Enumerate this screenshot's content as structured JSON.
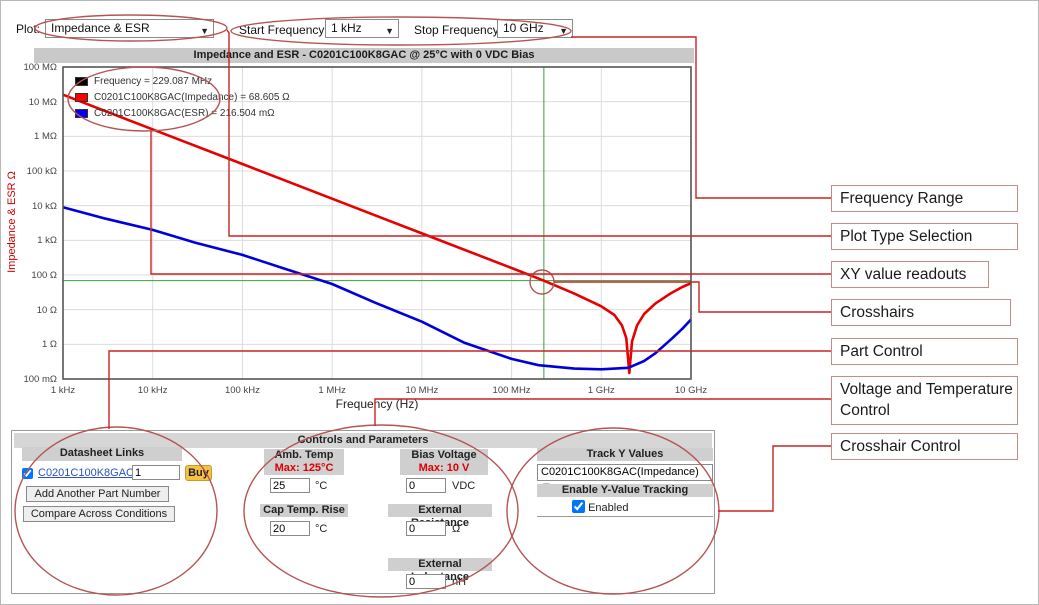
{
  "toolbar": {
    "plot_label": "Plot:",
    "plot_value": "Impedance & ESR",
    "start_label": "Start Frequency:",
    "start_value": "1 kHz",
    "stop_label": "Stop Frequency:",
    "stop_value": "10 GHz"
  },
  "chart": {
    "title": "Impedance and ESR - C0201C100K8GAC @ 25°C with 0 VDC Bias",
    "y_axis_title": "Impedance & ESR Ω",
    "x_axis_title": "Frequency (Hz)",
    "legend": [
      {
        "color": "#000000",
        "text": "Frequency = 229.087 MHz"
      },
      {
        "color": "#ff0000",
        "text": "C0201C100K8GAC(Impedance) = 68.605 Ω"
      },
      {
        "color": "#0000ee",
        "text": "C0201C100K8GAC(ESR) = 216.504 mΩ"
      }
    ]
  },
  "chart_data": {
    "type": "line",
    "x_scale": "log",
    "y_scale": "log",
    "title": "Impedance and ESR - C0201C100K8GAC @ 25°C with 0 VDC Bias",
    "xlabel": "Frequency (Hz)",
    "ylabel": "Impedance & ESR Ω",
    "x_range": [
      1000,
      10000000000
    ],
    "y_range": [
      0.1,
      100000000
    ],
    "grid": true,
    "legend_position": "top-left",
    "x_ticks": [
      {
        "v": 1000,
        "label": "1 kHz"
      },
      {
        "v": 10000,
        "label": "10 kHz"
      },
      {
        "v": 100000,
        "label": "100 kHz"
      },
      {
        "v": 1000000,
        "label": "1 MHz"
      },
      {
        "v": 10000000,
        "label": "10 MHz"
      },
      {
        "v": 100000000,
        "label": "100 MHz"
      },
      {
        "v": 1000000000,
        "label": "1 GHz"
      },
      {
        "v": 10000000000,
        "label": "10 GHz"
      }
    ],
    "y_ticks": [
      {
        "v": 100000000,
        "label": "100 MΩ"
      },
      {
        "v": 10000000,
        "label": "10 MΩ"
      },
      {
        "v": 1000000,
        "label": "1 MΩ"
      },
      {
        "v": 100000,
        "label": "100 kΩ"
      },
      {
        "v": 10000,
        "label": "10 kΩ"
      },
      {
        "v": 1000,
        "label": "1 kΩ"
      },
      {
        "v": 100,
        "label": "100 Ω"
      },
      {
        "v": 10,
        "label": "10 Ω"
      },
      {
        "v": 1,
        "label": "1 Ω"
      },
      {
        "v": 0.1,
        "label": "100 mΩ"
      }
    ],
    "series": [
      {
        "name": "C0201C100K8GAC(Impedance)",
        "color": "#e60000",
        "points": [
          [
            1000,
            15900000
          ],
          [
            10000,
            1590000
          ],
          [
            100000,
            159000
          ],
          [
            1000000,
            15900
          ],
          [
            10000000,
            1590
          ],
          [
            100000000,
            159
          ],
          [
            229087000,
            68.605
          ],
          [
            500000000,
            29
          ],
          [
            1000000000,
            12.5
          ],
          [
            1400000000,
            7
          ],
          [
            1700000000,
            3.5
          ],
          [
            1900000000,
            1.5
          ],
          [
            2050000000,
            0.15
          ],
          [
            2200000000,
            1.2
          ],
          [
            2500000000,
            3.5
          ],
          [
            3000000000,
            7.5
          ],
          [
            4000000000,
            15
          ],
          [
            6000000000,
            30
          ],
          [
            8000000000,
            45
          ],
          [
            10000000000,
            58
          ]
        ]
      },
      {
        "name": "C0201C100K8GAC(ESR)",
        "color": "#0000dd",
        "points": [
          [
            1000,
            9000
          ],
          [
            3000,
            4200
          ],
          [
            10000,
            2000
          ],
          [
            30000,
            850
          ],
          [
            100000,
            380
          ],
          [
            300000,
            150
          ],
          [
            1000000,
            55
          ],
          [
            3000000,
            16
          ],
          [
            10000000,
            4.5
          ],
          [
            30000000,
            1.1
          ],
          [
            100000000,
            0.38
          ],
          [
            200000000,
            0.25
          ],
          [
            500000000,
            0.2
          ],
          [
            1000000000,
            0.19
          ],
          [
            2000000000,
            0.21
          ],
          [
            3000000000,
            0.33
          ],
          [
            4000000000,
            0.55
          ],
          [
            6000000000,
            1.4
          ],
          [
            8000000000,
            2.8
          ],
          [
            10000000000,
            5.2
          ]
        ]
      }
    ],
    "crosshair": {
      "x": 229087000,
      "y": 68.605,
      "color": "#3aa03a"
    }
  },
  "callouts": [
    {
      "label": "Frequency Range"
    },
    {
      "label": "Plot Type Selection"
    },
    {
      "label": "XY value readouts"
    },
    {
      "label": "Crosshairs"
    },
    {
      "label": "Part Control"
    },
    {
      "label": "Voltage and Temperature Control"
    },
    {
      "label": "Crosshair Control"
    }
  ],
  "controls": {
    "panel_title": "Controls and Parameters",
    "datasheet": {
      "header": "Datasheet Links",
      "part_link": "C0201C100K8GAC",
      "qty": "1",
      "buy": "Buy",
      "add_btn": "Add Another Part Number",
      "compare_btn": "Compare Across Conditions",
      "part_checked": true
    },
    "amb_temp": {
      "header": "Amb. Temp",
      "max": "Max: 125°C",
      "value": "25",
      "unit": "°C"
    },
    "cap_temp": {
      "header": "Cap Temp. Rise",
      "value": "20",
      "unit": "°C"
    },
    "bias": {
      "header": "Bias Voltage",
      "max": "Max: 10 V",
      "value": "0",
      "unit": "VDC"
    },
    "ext_r": {
      "header": "External Resistance",
      "value": "0",
      "unit": "Ω"
    },
    "ext_l": {
      "header": "External Inductance",
      "value": "0",
      "unit": "nH"
    },
    "track": {
      "header": "Track Y Values",
      "selected": "C0201C100K8GAC(Impedance)",
      "enable_header": "Enable Y-Value Tracking",
      "enabled_label": "Enabled",
      "enabled_checked": true
    }
  },
  "colors": {
    "annotation_line": "#cc2222",
    "annotation_ellipse": "#b65454",
    "grid": "#dcdcdc",
    "plot_border": "#555555"
  }
}
